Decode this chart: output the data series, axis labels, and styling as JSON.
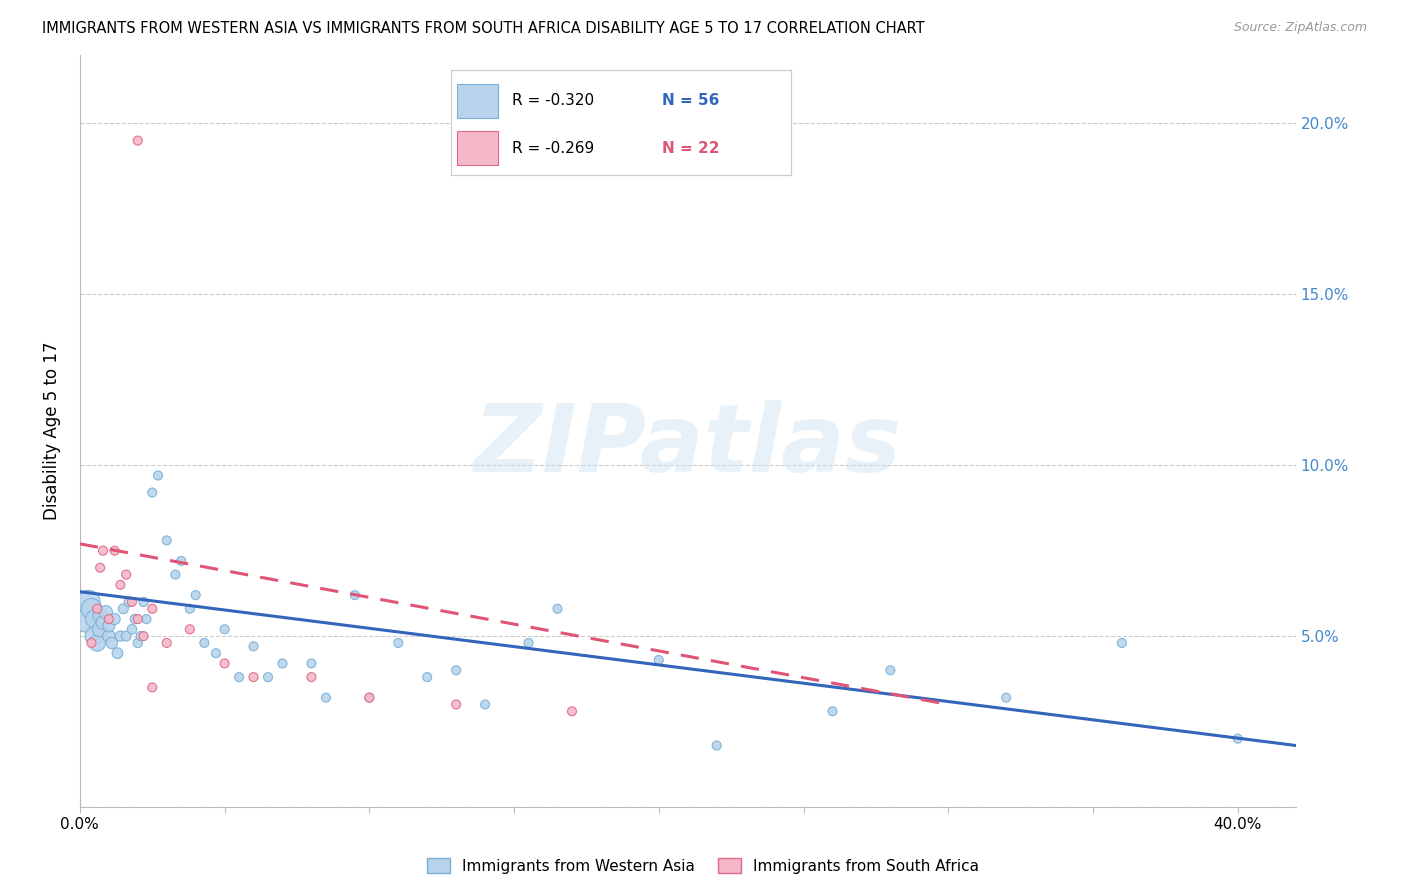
{
  "title": "IMMIGRANTS FROM WESTERN ASIA VS IMMIGRANTS FROM SOUTH AFRICA DISABILITY AGE 5 TO 17 CORRELATION CHART",
  "source": "Source: ZipAtlas.com",
  "ylabel": "Disability Age 5 to 17",
  "xlim": [
    0.0,
    0.42
  ],
  "ylim": [
    0.0,
    0.22
  ],
  "xticks": [
    0.0,
    0.05,
    0.1,
    0.15,
    0.2,
    0.25,
    0.3,
    0.35,
    0.4
  ],
  "xticklabels": [
    "0.0%",
    "",
    "",
    "",
    "",
    "",
    "",
    "",
    "40.0%"
  ],
  "yticks_right": [
    0.05,
    0.1,
    0.15,
    0.2
  ],
  "yticklabels_right": [
    "5.0%",
    "10.0%",
    "15.0%",
    "20.0%"
  ],
  "grid_color": "#cccccc",
  "background_color": "#ffffff",
  "watermark_text": "ZIPatlas",
  "western_asia": {
    "name": "Immigrants from Western Asia",
    "color": "#b8d4ec",
    "edge_color": "#7aafd4",
    "R": -0.32,
    "N": 56,
    "line_color": "#3366bb",
    "trend_x": [
      0.0,
      0.42
    ],
    "trend_y": [
      0.063,
      0.018
    ],
    "x": [
      0.002,
      0.003,
      0.004,
      0.005,
      0.005,
      0.006,
      0.007,
      0.007,
      0.008,
      0.009,
      0.01,
      0.01,
      0.011,
      0.012,
      0.013,
      0.014,
      0.015,
      0.016,
      0.017,
      0.018,
      0.019,
      0.02,
      0.021,
      0.022,
      0.023,
      0.025,
      0.027,
      0.03,
      0.033,
      0.035,
      0.038,
      0.04,
      0.043,
      0.047,
      0.05,
      0.055,
      0.06,
      0.065,
      0.07,
      0.08,
      0.085,
      0.095,
      0.1,
      0.11,
      0.12,
      0.13,
      0.14,
      0.155,
      0.165,
      0.2,
      0.22,
      0.26,
      0.28,
      0.32,
      0.36,
      0.4
    ],
    "y": [
      0.055,
      0.06,
      0.058,
      0.05,
      0.055,
      0.048,
      0.052,
      0.056,
      0.054,
      0.057,
      0.05,
      0.053,
      0.048,
      0.055,
      0.045,
      0.05,
      0.058,
      0.05,
      0.06,
      0.052,
      0.055,
      0.048,
      0.05,
      0.06,
      0.055,
      0.092,
      0.097,
      0.078,
      0.068,
      0.072,
      0.058,
      0.062,
      0.048,
      0.045,
      0.052,
      0.038,
      0.047,
      0.038,
      0.042,
      0.042,
      0.032,
      0.062,
      0.032,
      0.048,
      0.038,
      0.04,
      0.03,
      0.048,
      0.058,
      0.043,
      0.018,
      0.028,
      0.04,
      0.032,
      0.048,
      0.02
    ],
    "sizes": [
      350,
      280,
      220,
      180,
      160,
      140,
      120,
      110,
      100,
      90,
      80,
      75,
      70,
      65,
      60,
      55,
      52,
      50,
      50,
      48,
      46,
      45,
      44,
      44,
      43,
      42,
      42,
      42,
      42,
      42,
      42,
      42,
      42,
      42,
      42,
      42,
      42,
      42,
      42,
      42,
      42,
      42,
      42,
      42,
      42,
      42,
      42,
      42,
      42,
      42,
      42,
      42,
      42,
      42,
      42,
      42
    ]
  },
  "south_africa": {
    "name": "Immigrants from South Africa",
    "color": "#f4b8c8",
    "edge_color": "#e06888",
    "R": -0.269,
    "N": 22,
    "line_color": "#e05575",
    "trend_x": [
      0.0,
      0.3
    ],
    "trend_y": [
      0.077,
      0.03
    ],
    "x": [
      0.004,
      0.006,
      0.007,
      0.008,
      0.01,
      0.012,
      0.014,
      0.016,
      0.018,
      0.02,
      0.022,
      0.025,
      0.03,
      0.038,
      0.05,
      0.06,
      0.08,
      0.1,
      0.13,
      0.17,
      0.02,
      0.025
    ],
    "y": [
      0.048,
      0.058,
      0.07,
      0.075,
      0.055,
      0.075,
      0.065,
      0.068,
      0.06,
      0.055,
      0.05,
      0.058,
      0.048,
      0.052,
      0.042,
      0.038,
      0.038,
      0.032,
      0.03,
      0.028,
      0.195,
      0.035
    ],
    "sizes": [
      42,
      42,
      42,
      42,
      42,
      42,
      42,
      42,
      42,
      42,
      42,
      42,
      42,
      42,
      42,
      42,
      42,
      42,
      42,
      42,
      42,
      42
    ]
  },
  "legend_blue_color": "#3366bb",
  "legend_pink_color": "#e05575",
  "legend_R_blue": "R = -0.320",
  "legend_N_blue": "N = 56",
  "legend_R_pink": "R = -0.269",
  "legend_N_pink": "N = 22",
  "bottom_legend": [
    {
      "label": "Immigrants from Western Asia",
      "color": "#b8d4ec",
      "edge_color": "#7aafd4"
    },
    {
      "label": "Immigrants from South Africa",
      "color": "#f4b8c8",
      "edge_color": "#e06888"
    }
  ]
}
